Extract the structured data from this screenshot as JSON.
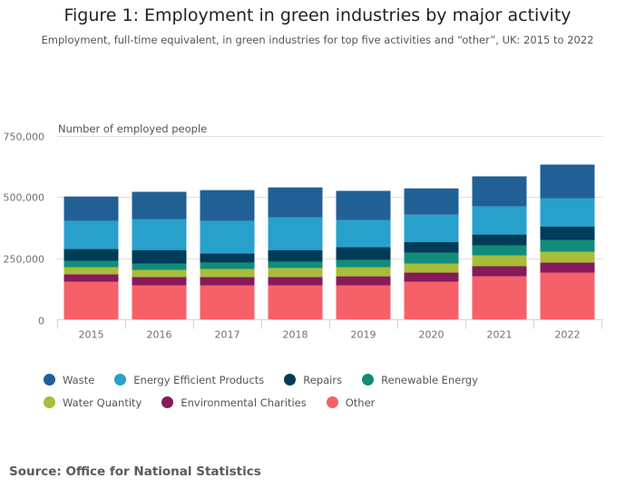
{
  "header": {
    "title": "Figure 1: Employment in green industries by major activity",
    "subtitle": "Employment, full-time equivalent, in green industries for top five activities and “other”, UK: 2015 to 2022"
  },
  "footer": {
    "source": "Source: Office for National Statistics"
  },
  "chart_data": {
    "type": "bar",
    "stacked": true,
    "title": "Figure 1: Employment in green industries by major activity",
    "subtitle": "Employment, full-time equivalent, in green industries for top five activities and “other”, UK: 2015 to 2022",
    "xlabel": "",
    "ylabel": "Number of employed people",
    "ylim": [
      0,
      750000
    ],
    "yticks": [
      0,
      250000,
      500000,
      750000
    ],
    "ytick_labels": [
      "0",
      "250,000",
      "500,000",
      "750,000"
    ],
    "grid": true,
    "legend_position": "bottom",
    "categories": [
      "2015",
      "2016",
      "2017",
      "2018",
      "2019",
      "2020",
      "2021",
      "2022"
    ],
    "series": [
      {
        "name": "Other",
        "color": "#f66068",
        "values": [
          155000,
          140000,
          140000,
          140000,
          140000,
          155000,
          177000,
          192000
        ]
      },
      {
        "name": "Environmental Charities",
        "color": "#871a5b",
        "values": [
          30000,
          34000,
          34000,
          34000,
          37000,
          37000,
          41000,
          41000
        ]
      },
      {
        "name": "Water Quantity",
        "color": "#a8bd3a",
        "values": [
          29000,
          29000,
          33000,
          37000,
          37000,
          37000,
          44000,
          44000
        ]
      },
      {
        "name": "Renewable Energy",
        "color": "#118c7b",
        "values": [
          26000,
          26000,
          26000,
          25000,
          30000,
          44000,
          41000,
          48000
        ]
      },
      {
        "name": "Repairs",
        "color": "#003c57",
        "values": [
          48000,
          55000,
          37000,
          48000,
          52000,
          44000,
          44000,
          55000
        ]
      },
      {
        "name": "Energy Efficient Products",
        "color": "#27a0cc",
        "values": [
          115000,
          126000,
          133000,
          133000,
          110000,
          111000,
          115000,
          115000
        ]
      },
      {
        "name": "Waste",
        "color": "#206095",
        "values": [
          99000,
          111000,
          125000,
          122000,
          119000,
          107000,
          122000,
          137000
        ]
      }
    ],
    "legend_order": [
      "Waste",
      "Energy Efficient Products",
      "Repairs",
      "Renewable Energy",
      "Water Quantity",
      "Environmental Charities",
      "Other"
    ]
  }
}
